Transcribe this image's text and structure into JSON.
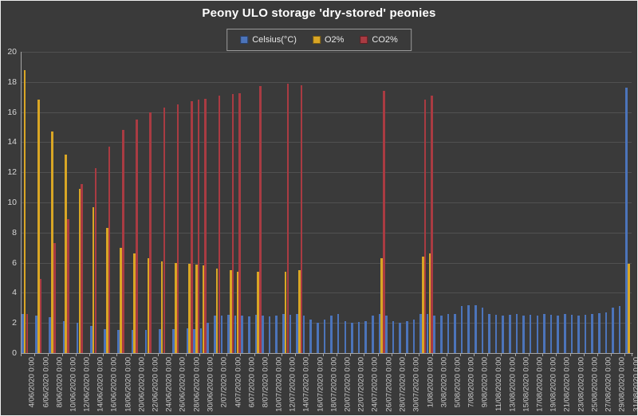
{
  "title": "Peony ULO storage 'dry-stored' peonies",
  "legend": {
    "items": [
      {
        "label": "Celsius(°C)",
        "color": "#4C74BA"
      },
      {
        "label": "O2%",
        "color": "#D9A625"
      },
      {
        "label": "CO2%",
        "color": "#A93B42"
      }
    ]
  },
  "colors": {
    "background": "#3a3a3a",
    "frame_border": "#ededed",
    "gridline": "#515151",
    "axis": "#a6a6a6",
    "axis_text": "#cccccc",
    "title_text": "#ffffff",
    "celsius_bar": "#4C74BA",
    "o2_bar": "#D9A625",
    "co2_bar": "#A93B42"
  },
  "chart_data": {
    "type": "bar",
    "title": "Peony ULO storage 'dry-stored' peonies",
    "xlabel": "",
    "ylabel": "",
    "ylim": [
      0,
      20
    ],
    "ytick_step": 2,
    "yticks": [
      0,
      2,
      4,
      6,
      8,
      10,
      12,
      14,
      16,
      18,
      20
    ],
    "grid": true,
    "legend_position": "top",
    "categories_note": "89 daily categories from 4/06/2020 to 31/08/2020; axis labels shown every 2 days; null = no bar recorded",
    "x_tick_labels": [
      "4/06/2020 0:00",
      "6/06/2020 0:00",
      "8/06/2020 0:00",
      "10/06/2020 0:00",
      "12/06/2020 0:00",
      "14/06/2020 0:00",
      "16/06/2020 0:00",
      "18/06/2020 0:00",
      "20/06/2020 0:00",
      "22/06/2020 0:00",
      "24/06/2020 0:00",
      "26/06/2020 0:00",
      "28/06/2020 0:00",
      "30/06/2020 0:00",
      "2/07/2020 0:00",
      "4/07/2020 0:00",
      "6/07/2020 0:00",
      "8/07/2020 0:00",
      "10/07/2020 0:00",
      "12/07/2020 0:00",
      "14/07/2020 0:00",
      "16/07/2020 0:00",
      "18/07/2020 0:00",
      "20/07/2020 0:00",
      "22/07/2020 0:00",
      "24/07/2020 0:00",
      "26/07/2020 0:00",
      "28/07/2020 0:00",
      "30/07/2020 0:00",
      "1/08/2020 0:00",
      "3/08/2020 0:00",
      "5/08/2020 0:00",
      "7/08/2020 0:00",
      "9/08/2020 0:00",
      "11/08/2020 0:00",
      "13/08/2020 0:00",
      "15/08/2020 0:00",
      "17/08/2020 0:00",
      "19/08/2020 0:00",
      "21/08/2020 0:00",
      "23/08/2020 0:00",
      "25/08/2020 0:00",
      "27/08/2020 0:00",
      "29/08/2020 0:00",
      "31/08/2020 0:00"
    ],
    "series": [
      {
        "name": "Celsius(°C)",
        "color": "#4C74BA",
        "values": [
          2.6,
          null,
          2.5,
          null,
          2.4,
          null,
          2.1,
          null,
          2.0,
          null,
          1.8,
          null,
          1.6,
          null,
          1.55,
          null,
          1.55,
          null,
          1.55,
          null,
          1.6,
          null,
          1.6,
          null,
          1.65,
          1.6,
          1.65,
          2.0,
          2.5,
          2.5,
          2.55,
          2.5,
          2.5,
          2.45,
          2.55,
          2.5,
          2.45,
          2.5,
          2.6,
          2.55,
          2.6,
          2.5,
          2.2,
          2.0,
          2.2,
          2.5,
          2.6,
          2.1,
          2.0,
          2.05,
          2.1,
          2.5,
          2.6,
          2.5,
          2.1,
          2.0,
          2.1,
          2.2,
          2.6,
          2.6,
          2.5,
          2.5,
          2.6,
          2.6,
          3.1,
          3.15,
          3.2,
          3.0,
          2.6,
          2.55,
          2.5,
          2.55,
          2.6,
          2.5,
          2.55,
          2.5,
          2.6,
          2.55,
          2.5,
          2.6,
          2.55,
          2.5,
          2.55,
          2.6,
          2.65,
          2.7,
          3.0,
          3.1,
          17.6
        ]
      },
      {
        "name": "O2%",
        "color": "#D9A625",
        "values": [
          18.8,
          null,
          16.8,
          null,
          14.7,
          null,
          13.2,
          null,
          10.9,
          null,
          9.7,
          null,
          8.3,
          null,
          7.0,
          null,
          6.6,
          null,
          6.3,
          null,
          6.1,
          null,
          6.0,
          null,
          5.9,
          5.85,
          5.8,
          null,
          5.6,
          null,
          5.5,
          5.4,
          null,
          null,
          5.4,
          null,
          null,
          null,
          5.4,
          null,
          5.5,
          null,
          null,
          null,
          null,
          null,
          null,
          null,
          null,
          null,
          null,
          null,
          6.3,
          null,
          null,
          null,
          null,
          null,
          6.4,
          6.6,
          null,
          null,
          null,
          null,
          null,
          null,
          null,
          null,
          null,
          null,
          null,
          null,
          null,
          null,
          null,
          null,
          null,
          null,
          null,
          null,
          null,
          null,
          null,
          null,
          null,
          null,
          null,
          null,
          5.9
        ]
      },
      {
        "name": "CO2%",
        "color": "#A93B42",
        "values": [
          2.6,
          null,
          4.9,
          null,
          7.3,
          null,
          8.9,
          null,
          11.2,
          null,
          12.3,
          null,
          13.7,
          null,
          14.8,
          null,
          15.5,
          null,
          16.0,
          null,
          16.3,
          null,
          16.5,
          null,
          16.7,
          16.8,
          16.9,
          null,
          17.1,
          null,
          17.2,
          17.25,
          null,
          null,
          17.75,
          null,
          null,
          null,
          17.9,
          null,
          17.8,
          null,
          null,
          null,
          null,
          null,
          null,
          null,
          null,
          null,
          null,
          null,
          17.4,
          null,
          null,
          null,
          null,
          null,
          16.8,
          17.1,
          null,
          null,
          null,
          null,
          null,
          null,
          null,
          null,
          null,
          null,
          null,
          null,
          null,
          null,
          null,
          null,
          null,
          null,
          null,
          null,
          null,
          null,
          null,
          null,
          null,
          null,
          null,
          null,
          null,
          null
        ]
      }
    ]
  }
}
